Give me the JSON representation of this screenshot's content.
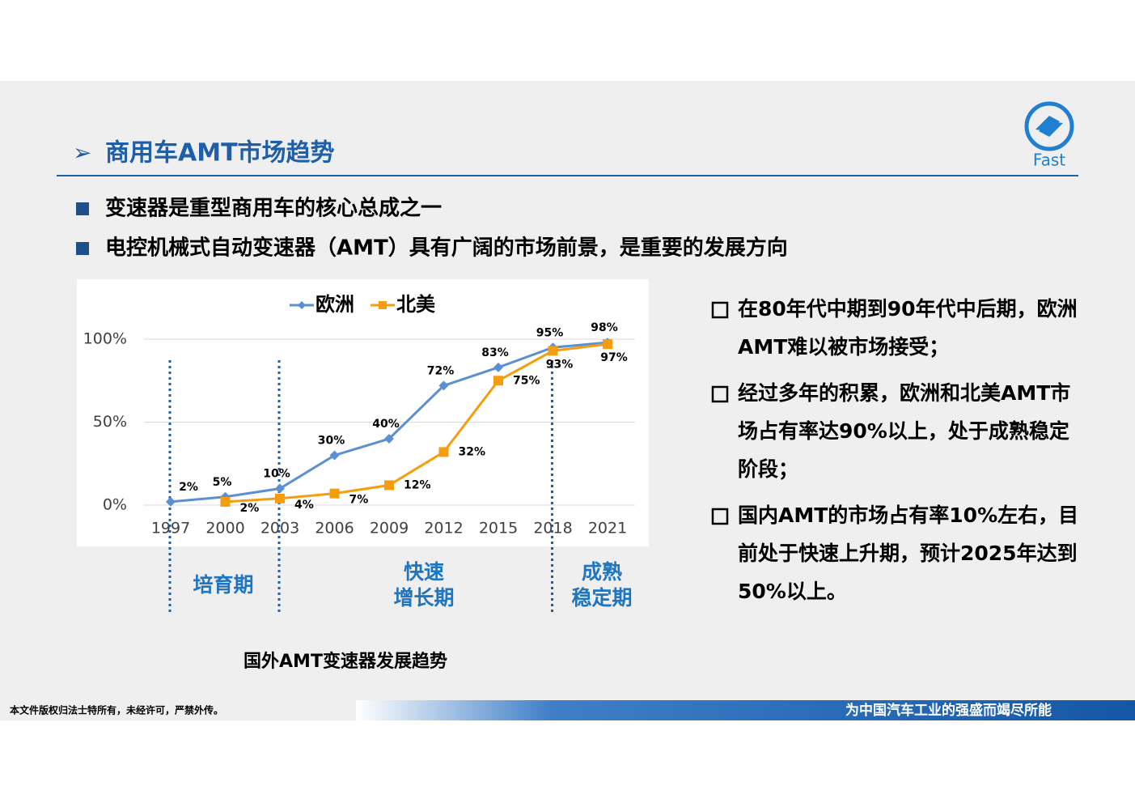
{
  "header": {
    "title": "商用车AMT市场趋势",
    "logo_text": "Fast"
  },
  "bullets": [
    "变速器是重型商用车的核心总成之一",
    "电控机械式自动变速器（AMT）具有广阔的市场前景，是重要的发展方向"
  ],
  "chart_data": {
    "type": "line",
    "categories": [
      "1997",
      "2000",
      "2003",
      "2006",
      "2009",
      "2012",
      "2015",
      "2018",
      "2021"
    ],
    "series": [
      {
        "name": "欧洲",
        "color": "#5b8fd4",
        "values": [
          2,
          5,
          10,
          30,
          40,
          72,
          83,
          95,
          98
        ],
        "value_labels": [
          "2%",
          "5%",
          "10%",
          "30%",
          "40%",
          "72%",
          "83%",
          "95%",
          "98%"
        ]
      },
      {
        "name": "北美",
        "color": "#f59d0e",
        "values": [
          null,
          2,
          4,
          7,
          12,
          32,
          75,
          93,
          97
        ],
        "value_labels": [
          null,
          "2%",
          "4%",
          "7%",
          "12%",
          "32%",
          "75%",
          "93%",
          "97%"
        ]
      }
    ],
    "ylim": [
      0,
      100
    ],
    "yticks": [
      {
        "value": 0,
        "label": "0%"
      },
      {
        "value": 50,
        "label": "50%"
      },
      {
        "value": 100,
        "label": "100%"
      }
    ],
    "grid": true,
    "legend": "top"
  },
  "periods": [
    {
      "lines": [
        "培育期"
      ]
    },
    {
      "lines": [
        "快速",
        "增长期"
      ]
    },
    {
      "lines": [
        "成熟",
        "稳定期"
      ]
    }
  ],
  "chart_caption": "国外AMT变速器发展趋势",
  "notes": [
    {
      "lines": [
        "在80年代中期到90年代中后期，欧洲",
        "AMT难以被市场接受；"
      ]
    },
    {
      "lines": [
        "经过多年的积累，欧洲和北美AMT市",
        "场占有率达90%以上，处于成熟稳定",
        "阶段；"
      ]
    },
    {
      "lines": [
        "国内AMT的市场占有率10%左右，目",
        "前处于快速上升期，预计2025年达到",
        "50%以上。"
      ]
    }
  ],
  "footer": {
    "left": "本文件版权归法士特所有，未经许可，严禁外传。",
    "right": "为中国汽车工业的强盛而竭尽所能"
  }
}
